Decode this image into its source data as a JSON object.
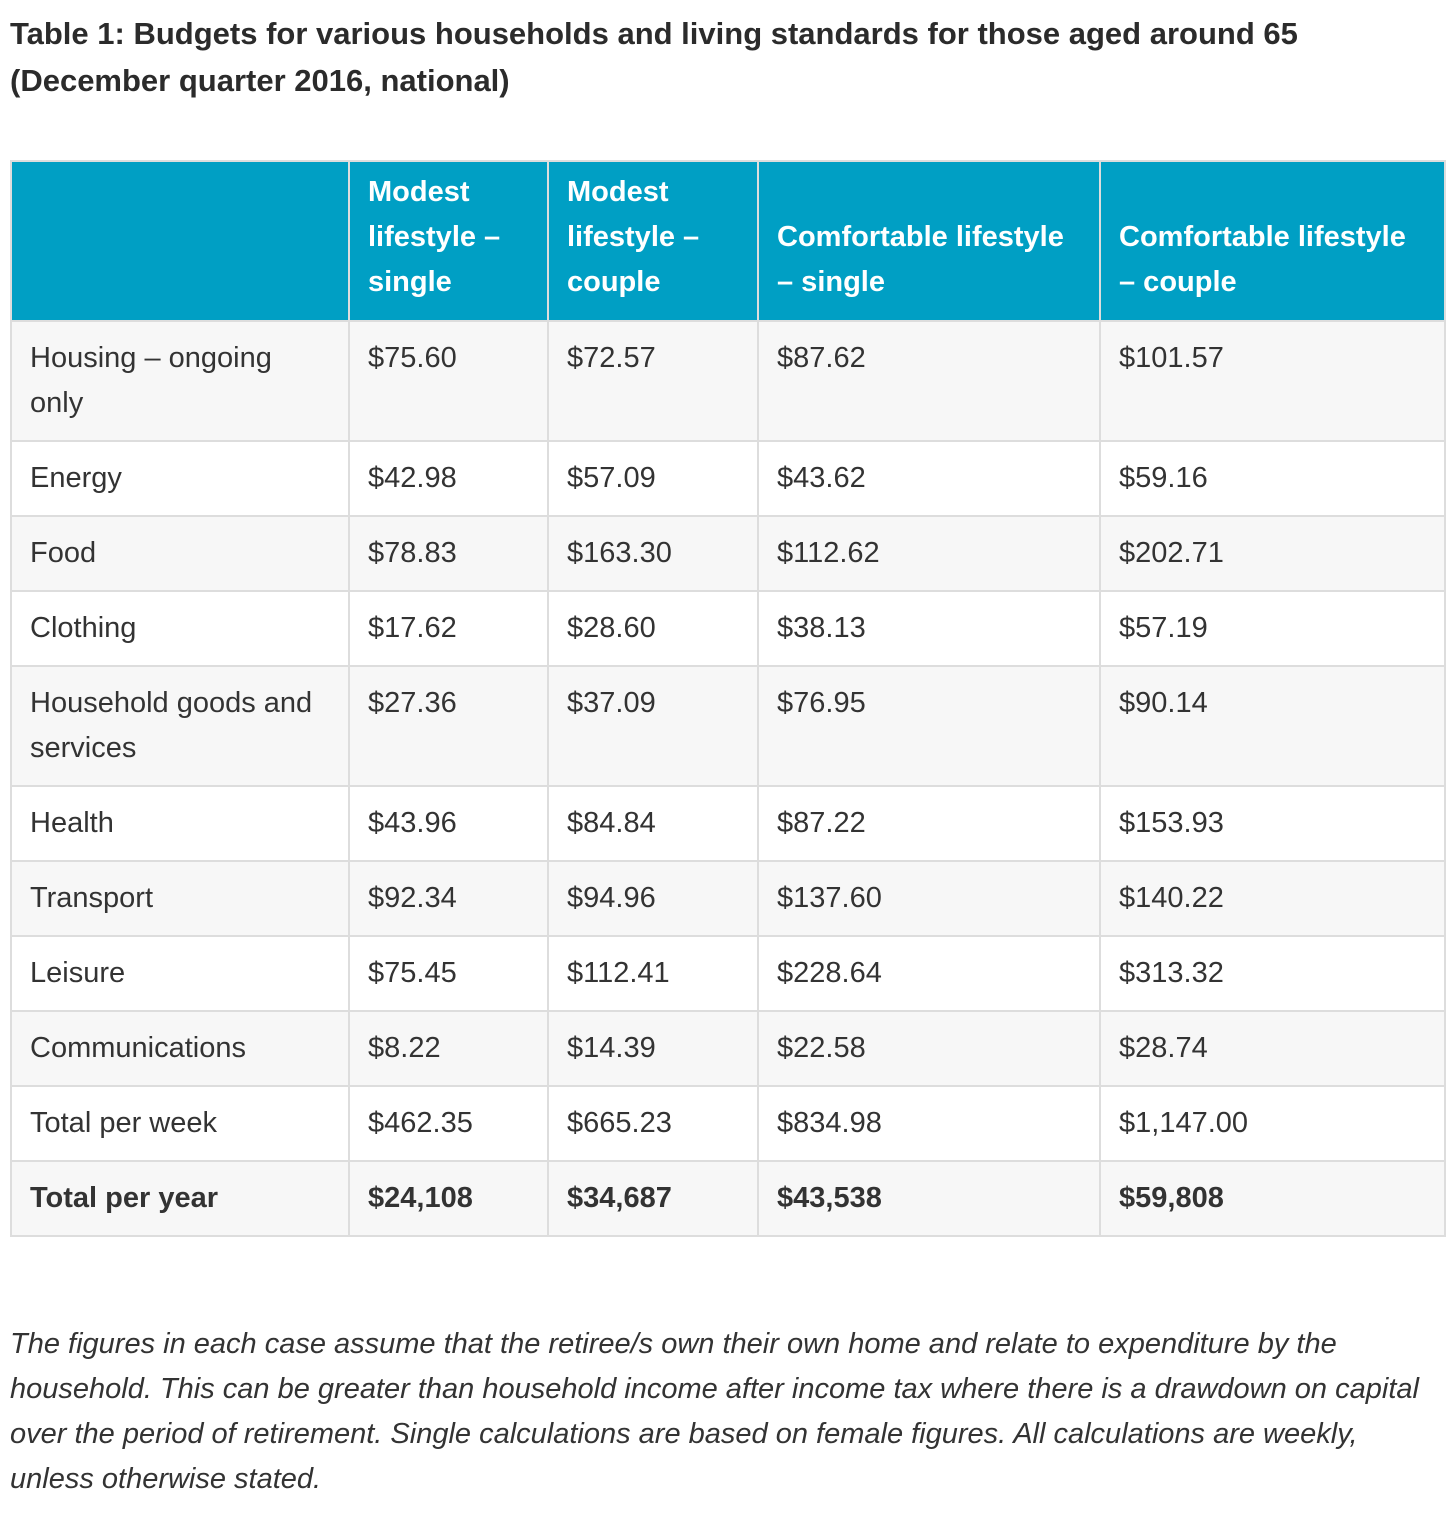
{
  "title": "Table 1: Budgets for various households and living standards for those aged around 65 (December quarter 2016, national)",
  "colors": {
    "header_bg": "#009fc4",
    "header_text": "#ffffff",
    "row_alt_bg": "#f7f7f7",
    "border": "#dddddd",
    "text": "#333333"
  },
  "table": {
    "columns": [
      "",
      "Modest lifestyle – single",
      "Modest lifestyle – couple",
      "Comfortable lifestyle – single",
      "Comfortable lifestyle – couple"
    ],
    "rows": [
      {
        "label": "Housing – ongoing only",
        "values": [
          "$75.60",
          "$72.57",
          "$87.62",
          "$101.57"
        ],
        "emphasis": false
      },
      {
        "label": "Energy",
        "values": [
          "$42.98",
          "$57.09",
          "$43.62",
          "$59.16"
        ],
        "emphasis": false
      },
      {
        "label": "Food",
        "values": [
          "$78.83",
          "$163.30",
          "$112.62",
          "$202.71"
        ],
        "emphasis": false
      },
      {
        "label": "Clothing",
        "values": [
          "$17.62",
          "$28.60",
          "$38.13",
          "$57.19"
        ],
        "emphasis": false
      },
      {
        "label": "Household goods and services",
        "values": [
          "$27.36",
          "$37.09",
          "$76.95",
          "$90.14"
        ],
        "emphasis": false
      },
      {
        "label": "Health",
        "values": [
          "$43.96",
          "$84.84",
          "$87.22",
          "$153.93"
        ],
        "emphasis": false
      },
      {
        "label": "Transport",
        "values": [
          "$92.34",
          "$94.96",
          "$137.60",
          "$140.22"
        ],
        "emphasis": false
      },
      {
        "label": "Leisure",
        "values": [
          "$75.45",
          "$112.41",
          "$228.64",
          "$313.32"
        ],
        "emphasis": false
      },
      {
        "label": "Communications",
        "values": [
          "$8.22",
          "$14.39",
          "$22.58",
          "$28.74"
        ],
        "emphasis": false
      },
      {
        "label": "Total per week",
        "values": [
          "$462.35",
          "$665.23",
          "$834.98",
          "$1,147.00"
        ],
        "emphasis": false
      },
      {
        "label": "Total per year",
        "values": [
          "$24,108",
          "$34,687",
          "$43,538",
          "$59,808"
        ],
        "emphasis": true
      }
    ]
  },
  "footnote": "The figures in each case assume that the retiree/s own their own home and relate to expenditure by the household. This can be greater than household income after income tax where there is a drawdown on capital over the period of retirement. Single calculations are based on female figures. All calculations are weekly, unless otherwise stated."
}
